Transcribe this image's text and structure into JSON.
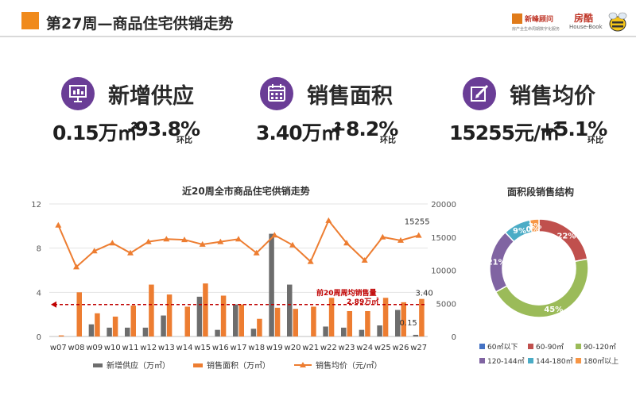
{
  "header": {
    "title": "第27周—商品住宅供销走势",
    "logos": {
      "left_name": "新峰顾问",
      "left_tagline": "房产全生命周期数字化服务",
      "right_name": "房酷",
      "right_sub": "House-Book"
    }
  },
  "kpis": [
    {
      "label": "新增供应",
      "value": "0.15万㎡",
      "change": "-93.8%",
      "suffix": "环比",
      "icon": "presentation-icon"
    },
    {
      "label": "销售面积",
      "value": "3.40万㎡",
      "change": "+8.2%",
      "suffix": "环比",
      "icon": "calendar-icon"
    },
    {
      "label": "销售均价",
      "value": "15255元/㎡",
      "change": "+5.1%",
      "suffix": "环比",
      "icon": "edit-icon"
    }
  ],
  "colors": {
    "accent": "#f08a1c",
    "purple": "#6a3d96",
    "supply": "#6d6d6d",
    "area": "#ed7d31",
    "price": "#ed7d31",
    "avg_line": "#c00000"
  },
  "chart_data": [
    {
      "type": "bar",
      "title": "近20周全市商品住宅供销走势",
      "categories": [
        "w07",
        "w08",
        "w09",
        "w10",
        "w11",
        "w12",
        "w13",
        "w14",
        "w15",
        "w16",
        "w17",
        "w18",
        "w19",
        "w20",
        "w21",
        "w22",
        "w23",
        "w24",
        "w25",
        "w26",
        "w27"
      ],
      "series": [
        {
          "name": "新增供应（万㎡）",
          "axis": "left",
          "type": "bar",
          "values": [
            0,
            0,
            1.1,
            0.8,
            0.8,
            0.8,
            1.9,
            0,
            3.6,
            0.6,
            2.9,
            0.7,
            9.3,
            4.7,
            0,
            0.9,
            0.8,
            0.6,
            1.0,
            2.4,
            0.15
          ]
        },
        {
          "name": "销售面积（万㎡）",
          "axis": "left",
          "type": "bar",
          "values": [
            0.1,
            4.0,
            2.1,
            1.8,
            2.8,
            4.7,
            3.8,
            2.7,
            4.8,
            3.7,
            2.9,
            1.6,
            2.6,
            2.5,
            2.7,
            3.5,
            2.3,
            2.3,
            3.5,
            3.1,
            3.4
          ]
        },
        {
          "name": "销售均价（元/㎡）",
          "axis": "right",
          "type": "line",
          "values": [
            16800,
            10500,
            12900,
            14100,
            12600,
            14300,
            14700,
            14600,
            13900,
            14300,
            14700,
            12600,
            15300,
            13800,
            11300,
            17500,
            14100,
            11500,
            15000,
            14500,
            15255
          ]
        }
      ],
      "ylim_left": [
        0,
        12
      ],
      "yticks_left": [
        0,
        4,
        8,
        12
      ],
      "ylim_right": [
        0,
        20000
      ],
      "yticks_right": [
        0,
        5000,
        10000,
        15000,
        20000
      ],
      "grid": true,
      "legend_position": "bottom",
      "reference_line": {
        "value": 2.89,
        "axis": "left",
        "label_line1": "前20周周均销售量",
        "label_line2": "2.89万㎡"
      },
      "data_labels": {
        "price_last": "15255",
        "area_last": "3.40",
        "supply_last": "0.15"
      }
    },
    {
      "type": "pie",
      "title": "面积段销售结构",
      "donut": true,
      "slices": [
        {
          "label": "60㎡以下",
          "value": 0,
          "display": "0%",
          "color": "#4472c4"
        },
        {
          "label": "60-90㎡",
          "value": 22,
          "display": "22%",
          "color": "#c0504d"
        },
        {
          "label": "90-120㎡",
          "value": 45,
          "display": "45%",
          "color": "#9bbb59"
        },
        {
          "label": "120-144㎡",
          "value": 21,
          "display": "21%",
          "color": "#8064a2"
        },
        {
          "label": "144-180㎡",
          "value": 9,
          "display": "9%",
          "color": "#4bacc6"
        },
        {
          "label": "180㎡以上",
          "value": 3,
          "display": "3%",
          "color": "#f79646"
        }
      ],
      "legend_position": "bottom"
    }
  ]
}
